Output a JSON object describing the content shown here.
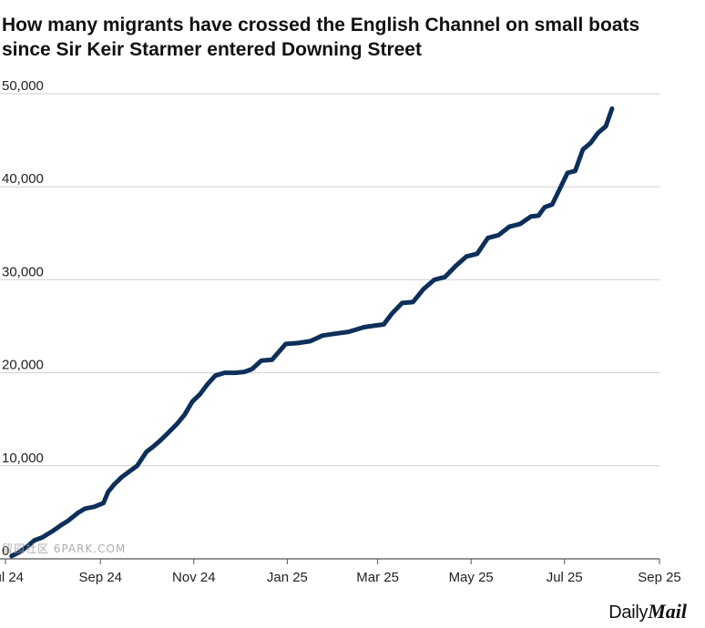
{
  "chart_data": {
    "type": "line",
    "title": "How many migrants have crossed the English Channel on small boats since Sir Keir Starmer entered Downing Street",
    "title_lines": [
      "How many migrants have crossed the English Channel on small boats",
      "since Sir Keir Starmer entered Downing Street"
    ],
    "xlabel": "",
    "ylabel": "",
    "ylim": [
      0,
      50000
    ],
    "yticks": [
      0,
      10000,
      20000,
      30000,
      40000,
      50000
    ],
    "ytick_labels": [
      "0",
      "10,000",
      "20,000",
      "30,000",
      "40,000",
      "50,000"
    ],
    "xlim": [
      "2024-07-01",
      "2025-09-01"
    ],
    "xticks": [
      "2024-07-01",
      "2024-09-01",
      "2024-11-01",
      "2025-01-01",
      "2025-03-01",
      "2025-05-01",
      "2025-07-01",
      "2025-09-01"
    ],
    "xtick_labels": [
      "Jul 24",
      "Sep 24",
      "Nov 24",
      "Jan 25",
      "Mar 25",
      "May 25",
      "Jul 25",
      "Sep 25"
    ],
    "grid": true,
    "line_color": "#0d2f5a",
    "series": [
      {
        "x": [
          "2024-07-05",
          "2024-07-10",
          "2024-07-15",
          "2024-07-20",
          "2024-07-25",
          "2024-08-01",
          "2024-08-07",
          "2024-08-11",
          "2024-08-17",
          "2024-08-22",
          "2024-08-28",
          "2024-09-03",
          "2024-09-06",
          "2024-09-10",
          "2024-09-15",
          "2024-09-20",
          "2024-09-25",
          "2024-10-01",
          "2024-10-05",
          "2024-10-10",
          "2024-10-15",
          "2024-10-21",
          "2024-10-26",
          "2024-10-31",
          "2024-11-05",
          "2024-11-10",
          "2024-11-15",
          "2024-11-21",
          "2024-11-28",
          "2024-12-04",
          "2024-12-09",
          "2024-12-15",
          "2024-12-22",
          "2024-12-31",
          "2025-01-08",
          "2025-01-16",
          "2025-01-24",
          "2025-02-01",
          "2025-02-10",
          "2025-02-20",
          "2025-02-28",
          "2025-03-05",
          "2025-03-10",
          "2025-03-17",
          "2025-03-24",
          "2025-03-31",
          "2025-04-07",
          "2025-04-14",
          "2025-04-21",
          "2025-04-28",
          "2025-05-05",
          "2025-05-12",
          "2025-05-19",
          "2025-05-26",
          "2025-06-02",
          "2025-06-09",
          "2025-06-14",
          "2025-06-18",
          "2025-06-23",
          "2025-06-28",
          "2025-07-03",
          "2025-07-08",
          "2025-07-13",
          "2025-07-18",
          "2025-07-23",
          "2025-07-28",
          "2025-08-01"
        ],
        "values": [
          300,
          700,
          1300,
          2000,
          2300,
          3000,
          3700,
          4100,
          4900,
          5400,
          5600,
          6000,
          7200,
          8000,
          8800,
          9400,
          10000,
          11500,
          12000,
          12700,
          13500,
          14500,
          15500,
          16900,
          17700,
          18800,
          19700,
          20000,
          20000,
          20100,
          20400,
          21300,
          21400,
          23100,
          23200,
          23400,
          24000,
          24200,
          24400,
          24900,
          25100,
          25200,
          26300,
          27500,
          27600,
          29000,
          30000,
          30300,
          31500,
          32500,
          32800,
          34500,
          34800,
          35700,
          36000,
          36800,
          36900,
          37800,
          38100,
          39800,
          41500,
          41700,
          44000,
          44700,
          45800,
          46500,
          48400
        ]
      }
    ]
  },
  "brand": {
    "daily": "Daily",
    "mail": "Mail"
  },
  "watermark": "留园社区 6PARK.COM"
}
